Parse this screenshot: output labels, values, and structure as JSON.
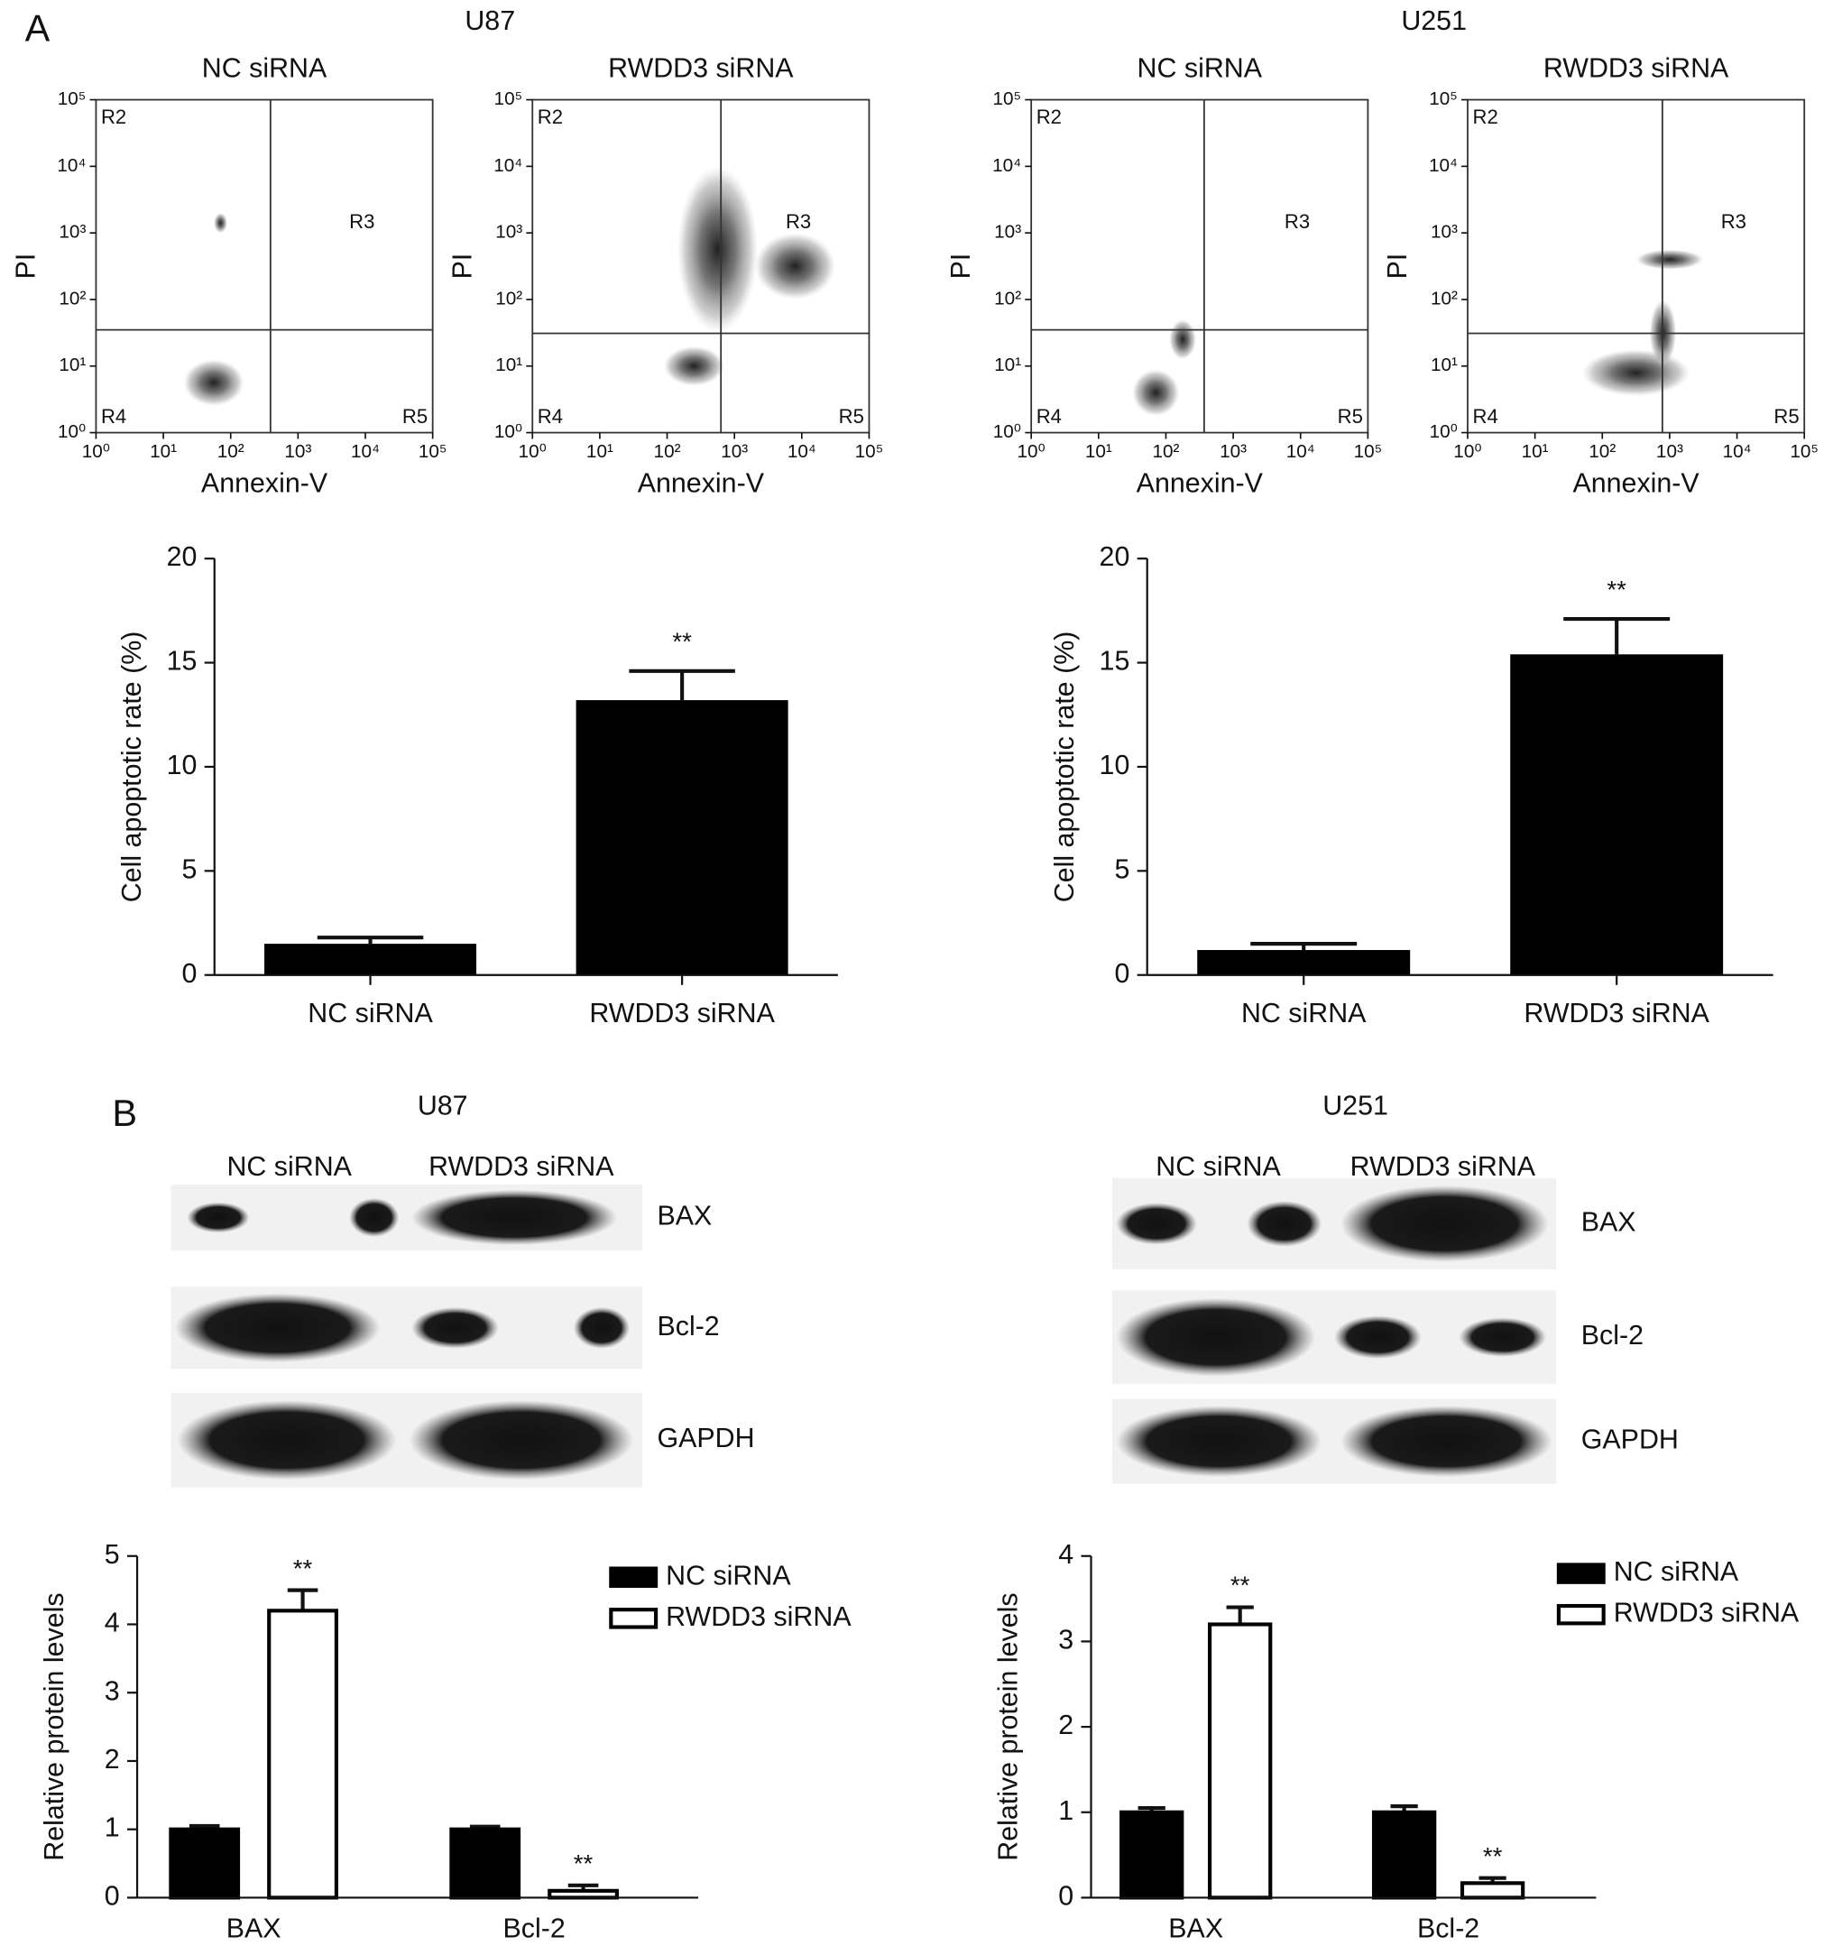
{
  "panel_labels": [
    "A",
    "B"
  ],
  "cell_lines": [
    "U87",
    "U251"
  ],
  "blots": [
    {
      "lanes": [
        "NC siRNA",
        "RWDD3 siRNA"
      ],
      "bands": [
        "BAX",
        "Bcl-2",
        "GAPDH"
      ]
    },
    {
      "lanes": [
        "NC siRNA",
        "RWDD3 siRNA"
      ],
      "bands": [
        "BAX",
        "Bcl-2",
        "GAPDH"
      ]
    }
  ],
  "chart_data": [
    {
      "type": "flow",
      "title": "NC siRNA",
      "xlabel": "Annexin-V",
      "ylabel": "PI",
      "log_scale": true,
      "xlim": [
        1,
        100000
      ],
      "ylim": [
        1,
        100000
      ],
      "xticks": [
        {
          "value": 1,
          "label": "10⁰"
        },
        {
          "value": 10,
          "label": "10¹"
        },
        {
          "value": 100,
          "label": "10²"
        },
        {
          "value": 1000,
          "label": "10³"
        },
        {
          "value": 10000,
          "label": "10⁴"
        },
        {
          "value": 100000,
          "label": "10⁵"
        }
      ],
      "yticks": [
        {
          "value": 1,
          "label": "10⁰"
        },
        {
          "value": 10,
          "label": "10¹"
        },
        {
          "value": 100,
          "label": "10²"
        },
        {
          "value": 1000,
          "label": "10³"
        },
        {
          "value": 10000,
          "label": "10⁴"
        },
        {
          "value": 100000,
          "label": "10⁵"
        }
      ],
      "gate": {
        "x": 390,
        "y": 35
      },
      "quadrants": [
        "R2",
        "R3",
        "R4",
        "R5"
      ]
    },
    {
      "type": "flow",
      "title": "RWDD3 siRNA",
      "xlabel": "Annexin-V",
      "ylabel": "PI",
      "log_scale": true,
      "xlim": [
        1,
        100000
      ],
      "ylim": [
        1,
        100000
      ],
      "xticks": [
        {
          "value": 1,
          "label": "10⁰"
        },
        {
          "value": 10,
          "label": "10¹"
        },
        {
          "value": 100,
          "label": "10²"
        },
        {
          "value": 1000,
          "label": "10³"
        },
        {
          "value": 10000,
          "label": "10⁴"
        },
        {
          "value": 100000,
          "label": "10⁵"
        }
      ],
      "yticks": [
        {
          "value": 1,
          "label": "10⁰"
        },
        {
          "value": 10,
          "label": "10¹"
        },
        {
          "value": 100,
          "label": "10²"
        },
        {
          "value": 1000,
          "label": "10³"
        },
        {
          "value": 10000,
          "label": "10⁴"
        },
        {
          "value": 100000,
          "label": "10⁵"
        }
      ],
      "gate": {
        "x": 630,
        "y": 31
      },
      "quadrants": [
        "R2",
        "R3",
        "R4",
        "R5"
      ]
    },
    {
      "type": "flow",
      "title": "NC siRNA",
      "xlabel": "Annexin-V",
      "ylabel": "PI",
      "log_scale": true,
      "xlim": [
        1,
        100000
      ],
      "ylim": [
        1,
        100000
      ],
      "xticks": [
        {
          "value": 1,
          "label": "10⁰"
        },
        {
          "value": 10,
          "label": "10¹"
        },
        {
          "value": 100,
          "label": "10²"
        },
        {
          "value": 1000,
          "label": "10³"
        },
        {
          "value": 10000,
          "label": "10⁴"
        },
        {
          "value": 100000,
          "label": "10⁵"
        }
      ],
      "yticks": [
        {
          "value": 1,
          "label": "10⁰"
        },
        {
          "value": 10,
          "label": "10¹"
        },
        {
          "value": 100,
          "label": "10²"
        },
        {
          "value": 1000,
          "label": "10³"
        },
        {
          "value": 10000,
          "label": "10⁴"
        },
        {
          "value": 100000,
          "label": "10⁵"
        }
      ],
      "gate": {
        "x": 370,
        "y": 35
      },
      "quadrants": [
        "R2",
        "R3",
        "R4",
        "R5"
      ]
    },
    {
      "type": "flow",
      "title": "RWDD3 siRNA",
      "xlabel": "Annexin-V",
      "ylabel": "PI",
      "log_scale": true,
      "xlim": [
        1,
        100000
      ],
      "ylim": [
        1,
        100000
      ],
      "xticks": [
        {
          "value": 1,
          "label": "10⁰"
        },
        {
          "value": 10,
          "label": "10¹"
        },
        {
          "value": 100,
          "label": "10²"
        },
        {
          "value": 1000,
          "label": "10³"
        },
        {
          "value": 10000,
          "label": "10⁴"
        },
        {
          "value": 100000,
          "label": "10⁵"
        }
      ],
      "yticks": [
        {
          "value": 1,
          "label": "10⁰"
        },
        {
          "value": 10,
          "label": "10¹"
        },
        {
          "value": 100,
          "label": "10²"
        },
        {
          "value": 1000,
          "label": "10³"
        },
        {
          "value": 10000,
          "label": "10⁴"
        },
        {
          "value": 100000,
          "label": "10⁵"
        }
      ],
      "gate": {
        "x": 780,
        "y": 31
      },
      "quadrants": [
        "R2",
        "R3",
        "R4",
        "R5"
      ]
    },
    {
      "type": "bar",
      "ylabel": "Cell apoptotic rate (%)",
      "categories": [
        "NC siRNA",
        "RWDD3 siRNA"
      ],
      "values": [
        1.5,
        13.2
      ],
      "errors": [
        0.3,
        1.4
      ],
      "significance": [
        null,
        "**"
      ],
      "color": "#000000",
      "ylim": [
        0,
        20
      ],
      "yticks": [
        0,
        5,
        10,
        15,
        20
      ]
    },
    {
      "type": "bar",
      "ylabel": "Cell apoptotic rate (%)",
      "categories": [
        "NC siRNA",
        "RWDD3 siRNA"
      ],
      "values": [
        1.2,
        15.4
      ],
      "errors": [
        0.3,
        1.7
      ],
      "significance": [
        null,
        "**"
      ],
      "color": "#000000",
      "ylim": [
        0,
        20
      ],
      "yticks": [
        0,
        5,
        10,
        15,
        20
      ]
    },
    {
      "type": "grouped_bar",
      "ylabel": "Relative protein levels",
      "categories": [
        "BAX",
        "Bcl-2"
      ],
      "series": [
        {
          "name": "NC siRNA",
          "color": "#000000",
          "values": [
            1.0,
            1.0
          ],
          "errors": [
            0.05,
            0.04
          ],
          "significance": [
            null,
            null
          ]
        },
        {
          "name": "RWDD3 siRNA",
          "color": "#ffffff",
          "values": [
            4.2,
            0.1
          ],
          "errors": [
            0.3,
            0.08
          ],
          "significance": [
            "**",
            "**"
          ]
        }
      ],
      "ylim": [
        0,
        5
      ],
      "yticks": [
        0,
        1,
        2,
        3,
        4,
        5
      ],
      "legend": "right"
    },
    {
      "type": "grouped_bar",
      "ylabel": "Relative protein levels",
      "categories": [
        "BAX",
        "Bcl-2"
      ],
      "series": [
        {
          "name": "NC siRNA",
          "color": "#000000",
          "values": [
            1.0,
            1.0
          ],
          "errors": [
            0.05,
            0.07
          ],
          "significance": [
            null,
            null
          ]
        },
        {
          "name": "RWDD3 siRNA",
          "color": "#ffffff",
          "values": [
            3.2,
            0.17
          ],
          "errors": [
            0.2,
            0.06
          ],
          "significance": [
            "**",
            "**"
          ]
        }
      ],
      "ylim": [
        0,
        4
      ],
      "yticks": [
        0,
        1,
        2,
        3,
        4
      ],
      "legend": "right"
    }
  ]
}
